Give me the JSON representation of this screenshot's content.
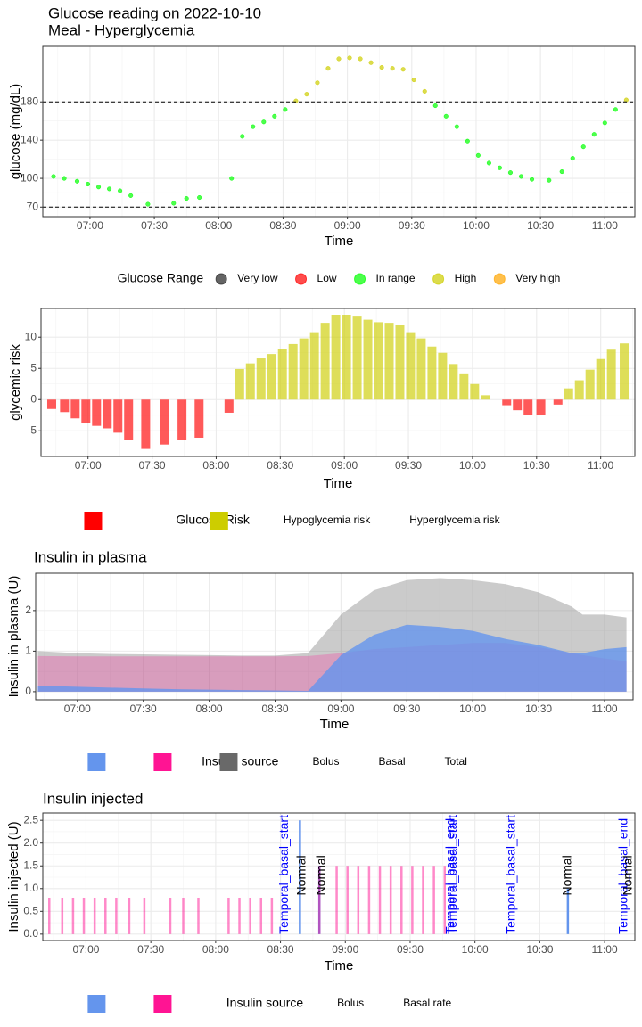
{
  "chart_data": [
    {
      "type": "scatter",
      "title": "Glucose reading on 2022-10-10",
      "subtitle": "Meal - Hyperglycemia",
      "x_label": "Time",
      "y_label": "glucose (mg/dL)",
      "xlim": [
        "06:38",
        "11:14"
      ],
      "xticks": [
        "07:00",
        "07:30",
        "08:00",
        "08:30",
        "09:00",
        "09:30",
        "10:00",
        "10:30",
        "11:00"
      ],
      "ylim": [
        60,
        238
      ],
      "yticks": [
        70,
        100,
        140,
        180
      ],
      "hlines": [
        70,
        180
      ],
      "grid": true,
      "alpha": 0.7,
      "legend_title": "Glucose Range",
      "legend_position": "bottom",
      "series": [
        {
          "name": "Very low",
          "color": "#222222",
          "x": [],
          "values": []
        },
        {
          "name": "Low",
          "color": "#ff0000",
          "x": [],
          "values": []
        },
        {
          "name": "In range",
          "color": "#00ff00",
          "x": [
            "06:43",
            "06:48",
            "06:54",
            "06:59",
            "07:04",
            "07:09",
            "07:14",
            "07:19",
            "07:27",
            "07:39",
            "07:45",
            "07:51",
            "08:06",
            "08:11",
            "08:16",
            "08:21",
            "08:26",
            "08:31",
            "09:41",
            "09:46",
            "09:51",
            "09:56",
            "10:01",
            "10:06",
            "10:11",
            "10:16",
            "10:21",
            "10:26",
            "10:34",
            "10:40",
            "10:45",
            "10:50",
            "10:55",
            "11:00",
            "11:05"
          ],
          "values": [
            102,
            100,
            97,
            94,
            91,
            89,
            87,
            82,
            73,
            74,
            79,
            80,
            100,
            144,
            154,
            159,
            165,
            172,
            176,
            165,
            154,
            139,
            124,
            116,
            111,
            106,
            102,
            99,
            98,
            107,
            121,
            133,
            146,
            158,
            172
          ]
        },
        {
          "name": "High",
          "color": "#cdcd00",
          "x": [
            "08:36",
            "08:41",
            "08:46",
            "08:51",
            "08:56",
            "09:01",
            "09:06",
            "09:11",
            "09:16",
            "09:21",
            "09:26",
            "09:31",
            "09:36",
            "11:10"
          ],
          "values": [
            181,
            188,
            200,
            215,
            225,
            226,
            225,
            221,
            216,
            215,
            214,
            203,
            191,
            182
          ]
        },
        {
          "name": "Very high",
          "color": "#ffa500",
          "x": [],
          "values": []
        }
      ]
    },
    {
      "type": "bar",
      "x_label": "Time",
      "y_label": "glycemic risk",
      "xlim": [
        "06:38",
        "11:16"
      ],
      "xticks": [
        "07:00",
        "07:30",
        "08:00",
        "08:30",
        "09:00",
        "09:30",
        "10:00",
        "10:30",
        "11:00"
      ],
      "ylim": [
        -9.1,
        14.6
      ],
      "yticks": [
        -5,
        0,
        5,
        10
      ],
      "grid": true,
      "alpha": 0.65,
      "legend_title": "Glucose Risk",
      "legend_position": "bottom",
      "x": [
        "06:43",
        "06:49",
        "06:54",
        "06:59",
        "07:04",
        "07:09",
        "07:14",
        "07:19",
        "07:27",
        "07:36",
        "07:44",
        "07:52",
        "08:06",
        "08:11",
        "08:16",
        "08:21",
        "08:26",
        "08:31",
        "08:36",
        "08:41",
        "08:46",
        "08:51",
        "08:56",
        "09:01",
        "09:06",
        "09:11",
        "09:16",
        "09:21",
        "09:26",
        "09:31",
        "09:36",
        "09:41",
        "09:46",
        "09:51",
        "09:56",
        "10:01",
        "10:06",
        "10:16",
        "10:21",
        "10:26",
        "10:32",
        "10:40",
        "10:45",
        "10:50",
        "10:55",
        "11:00",
        "11:05",
        "11:11"
      ],
      "series": [
        {
          "name": "Hypoglycemia risk",
          "color": "#ff0000",
          "values": [
            -1.5,
            -2,
            -3,
            -3.7,
            -4.2,
            -4.6,
            -5.3,
            -6.5,
            -7.9,
            -7.2,
            -6.4,
            -6.1,
            -2.1,
            null,
            null,
            null,
            null,
            null,
            null,
            null,
            null,
            null,
            null,
            null,
            null,
            null,
            null,
            null,
            null,
            null,
            null,
            null,
            null,
            null,
            null,
            null,
            null,
            -0.9,
            -1.7,
            -2.4,
            -2.4,
            -0.8,
            null,
            null,
            null,
            null,
            null,
            null
          ]
        },
        {
          "name": "Hyperglycemia risk",
          "color": "#cdcd00",
          "values": [
            null,
            null,
            null,
            null,
            null,
            null,
            null,
            null,
            null,
            null,
            null,
            null,
            null,
            4.9,
            5.8,
            6.6,
            7.3,
            8.1,
            8.9,
            9.8,
            10.8,
            12.3,
            13.6,
            13.6,
            13.3,
            12.8,
            12.4,
            12.3,
            11.9,
            10.8,
            9.8,
            8.5,
            7.5,
            5.7,
            4.2,
            2.5,
            0.7,
            null,
            null,
            null,
            null,
            null,
            1.8,
            3.1,
            4.8,
            6.5,
            8.0,
            9.0
          ]
        }
      ]
    },
    {
      "type": "area",
      "title": "Insulin in plasma",
      "x_label": "Time",
      "y_label": "Insulin in plasma (U)",
      "xlim": [
        "06:41",
        "11:13"
      ],
      "xticks": [
        "07:00",
        "07:30",
        "08:00",
        "08:30",
        "09:00",
        "09:30",
        "10:00",
        "10:30",
        "11:00"
      ],
      "ylim": [
        -0.2,
        2.92
      ],
      "yticks": [
        0,
        1,
        2
      ],
      "grid": true,
      "legend_title": "Insulin source",
      "legend_position": "bottom",
      "x": [
        "06:42",
        "07:00",
        "07:15",
        "07:30",
        "07:45",
        "08:00",
        "08:15",
        "08:30",
        "08:45",
        "09:00",
        "09:15",
        "09:30",
        "09:45",
        "10:00",
        "10:15",
        "10:30",
        "10:45",
        "10:50",
        "11:00",
        "11:10"
      ],
      "series": [
        {
          "name": "Bolus",
          "color": "#6495ed",
          "alpha": 0.8,
          "values": [
            0.15,
            0.12,
            0.1,
            0.08,
            0.06,
            0.05,
            0.04,
            0.03,
            0.02,
            0.9,
            1.4,
            1.65,
            1.6,
            1.5,
            1.3,
            1.15,
            0.95,
            0.95,
            1.05,
            1.1
          ]
        },
        {
          "name": "Basal",
          "color": "#ff1493",
          "alpha": 0.25,
          "values": [
            0.88,
            0.87,
            0.87,
            0.87,
            0.87,
            0.87,
            0.87,
            0.87,
            0.88,
            0.95,
            1.05,
            1.1,
            1.15,
            1.2,
            1.2,
            1.1,
            0.95,
            0.9,
            0.82,
            0.75
          ]
        },
        {
          "name": "Total",
          "color": "#696969",
          "alpha": 0.35,
          "values": [
            1.0,
            0.95,
            0.93,
            0.92,
            0.91,
            0.9,
            0.89,
            0.89,
            0.95,
            1.9,
            2.5,
            2.75,
            2.8,
            2.75,
            2.65,
            2.45,
            2.1,
            1.9,
            1.9,
            1.83
          ]
        }
      ]
    },
    {
      "type": "bar",
      "title": "Insulin injected",
      "x_label": "Time",
      "y_label": "Insulin injected (U)",
      "xlim": [
        "06:40",
        "11:14"
      ],
      "xticks": [
        "07:00",
        "07:30",
        "08:00",
        "08:30",
        "09:00",
        "09:30",
        "10:00",
        "10:30",
        "11:00"
      ],
      "ylim": [
        -0.14,
        2.66
      ],
      "yticks": [
        {
          "value": 0,
          "label": "0.0"
        },
        {
          "value": 0.5,
          "label": "0.5"
        },
        {
          "value": 1,
          "label": "1.0"
        },
        {
          "value": 1.5,
          "label": "1.5"
        },
        {
          "value": 2,
          "label": "2.0"
        },
        {
          "value": 2.5,
          "label": "2.5"
        }
      ],
      "grid": true,
      "legend_title": "Insulin source",
      "legend_position": "bottom",
      "series": [
        {
          "name": "Bolus",
          "color": "#6495ed",
          "alpha": 1,
          "x": [
            "08:39",
            "08:48",
            "10:43"
          ],
          "values": [
            2.5,
            1.5,
            1.0
          ]
        },
        {
          "name": "Basal rate",
          "color": "#ff1493",
          "alpha": 0.5,
          "x": [
            "06:43",
            "06:49",
            "06:54",
            "06:59",
            "07:04",
            "07:09",
            "07:14",
            "07:20",
            "07:27",
            "07:39",
            "07:45",
            "07:52",
            "08:06",
            "08:11",
            "08:16",
            "08:21",
            "08:26",
            "08:48",
            "08:56",
            "09:01",
            "09:06",
            "09:11",
            "09:16",
            "09:21",
            "09:26",
            "09:31",
            "09:36",
            "09:41",
            "09:46"
          ],
          "values": [
            0.8,
            0.8,
            0.8,
            0.8,
            0.8,
            0.8,
            0.8,
            0.8,
            0.8,
            0.8,
            0.8,
            0.8,
            0.8,
            0.8,
            0.8,
            0.8,
            0.8,
            1.5,
            1.5,
            1.5,
            1.5,
            1.5,
            1.5,
            1.5,
            1.5,
            1.5,
            1.5,
            1.5,
            1.5
          ]
        }
      ],
      "annotations": [
        {
          "x": "08:32",
          "y": 0,
          "text": "Temporal_basal_start",
          "color": "#0000ff"
        },
        {
          "x": "08:40",
          "y": 0.85,
          "text": "Normal",
          "color": "#000000"
        },
        {
          "x": "08:49",
          "y": 0.85,
          "text": "Normal",
          "color": "#000000"
        },
        {
          "x": "09:49",
          "y": 0,
          "text": "Temporal_basal_end",
          "color": "#0000ff"
        },
        {
          "x": "09:50",
          "y": 0,
          "text": "Temporal_basal_start",
          "color": "#0000ff"
        },
        {
          "x": "10:17",
          "y": 0,
          "text": "Temporal_basal_start",
          "color": "#0000ff"
        },
        {
          "x": "10:43",
          "y": 0.85,
          "text": "Normal",
          "color": "#000000"
        },
        {
          "x": "11:09",
          "y": 0,
          "text": "Temporal_basal_end",
          "color": "#0000ff"
        },
        {
          "x": "11:11",
          "y": 0.85,
          "text": "Normal",
          "color": "#000000"
        }
      ]
    }
  ]
}
